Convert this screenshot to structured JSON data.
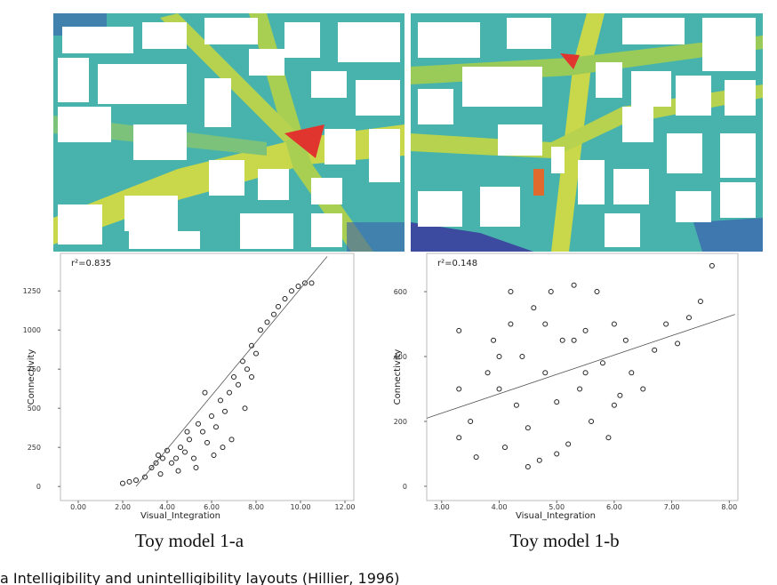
{
  "chart_data": [
    {
      "type": "scatter",
      "title": "Toy model 1-a",
      "annotation": "r²=0.835",
      "x_label": "Visual_Integration",
      "y_label": "Connectivity",
      "xlim": [
        -0.8,
        12.4
      ],
      "ylim": [
        -90,
        1490
      ],
      "xticks": [
        {
          "value": 0,
          "label": "0.00"
        },
        {
          "value": 2,
          "label": "2.00"
        },
        {
          "value": 4,
          "label": "4.00"
        },
        {
          "value": 6,
          "label": "6.00"
        },
        {
          "value": 8,
          "label": "8.00"
        },
        {
          "value": 10,
          "label": "10.00"
        },
        {
          "value": 12,
          "label": "12.00"
        }
      ],
      "yticks": [
        0,
        250,
        500,
        750,
        1000,
        1250
      ],
      "color": "#222222",
      "x": [
        2.0,
        2.3,
        2.6,
        3.0,
        3.3,
        3.5,
        3.6,
        3.8,
        4.0,
        4.2,
        4.4,
        4.6,
        4.8,
        5.0,
        5.2,
        5.4,
        5.6,
        5.8,
        6.0,
        6.2,
        6.4,
        6.6,
        6.8,
        7.0,
        7.2,
        7.4,
        7.6,
        7.8,
        8.0,
        8.2,
        8.5,
        8.8,
        9.0,
        9.3,
        9.6,
        9.9,
        10.2,
        10.5,
        3.7,
        4.5,
        5.3,
        6.1,
        6.9,
        7.5,
        5.7,
        4.9,
        7.8,
        6.5
      ],
      "values": [
        20,
        30,
        40,
        60,
        120,
        150,
        200,
        180,
        230,
        150,
        180,
        250,
        220,
        300,
        180,
        400,
        350,
        280,
        450,
        380,
        550,
        480,
        600,
        700,
        650,
        800,
        750,
        900,
        850,
        1000,
        1050,
        1100,
        1150,
        1200,
        1250,
        1280,
        1300,
        1300,
        80,
        100,
        120,
        200,
        300,
        500,
        600,
        350,
        700,
        250
      ],
      "trend_line": {
        "x": [
          2.6,
          11.2
        ],
        "y": [
          0,
          1470
        ]
      }
    },
    {
      "type": "scatter",
      "title": "Toy model 1-b",
      "annotation": "r²=0.148",
      "x_label": "Visual_Integration",
      "y_label": "Connectivity",
      "xlim": [
        2.74,
        8.15
      ],
      "ylim": [
        -44,
        718
      ],
      "xticks": [
        {
          "value": 3,
          "label": "3.00"
        },
        {
          "value": 4,
          "label": "4.00"
        },
        {
          "value": 5,
          "label": "5.00"
        },
        {
          "value": 6,
          "label": "6.00"
        },
        {
          "value": 7,
          "label": "7.00"
        },
        {
          "value": 8,
          "label": "8.00"
        }
      ],
      "yticks": [
        0,
        200,
        400,
        600
      ],
      "color": "#222222",
      "x": [
        3.3,
        3.3,
        3.3,
        3.5,
        3.6,
        3.8,
        3.9,
        4.0,
        4.1,
        4.2,
        4.3,
        4.4,
        4.5,
        4.6,
        4.7,
        4.8,
        4.9,
        5.0,
        5.1,
        5.2,
        5.3,
        5.4,
        5.5,
        5.6,
        5.7,
        5.8,
        5.9,
        6.0,
        6.1,
        6.2,
        6.3,
        6.5,
        6.7,
        6.9,
        7.1,
        7.3,
        7.5,
        7.7,
        4.0,
        4.5,
        5.0,
        5.5,
        6.0,
        4.2,
        4.8,
        5.3
      ],
      "values": [
        480,
        300,
        150,
        200,
        90,
        350,
        450,
        300,
        120,
        500,
        250,
        400,
        180,
        550,
        80,
        350,
        600,
        260,
        450,
        130,
        620,
        300,
        480,
        200,
        600,
        380,
        150,
        500,
        280,
        450,
        350,
        300,
        420,
        500,
        440,
        520,
        570,
        680,
        400,
        60,
        100,
        350,
        250,
        600,
        500,
        450
      ],
      "trend_line": {
        "x": [
          2.74,
          8.1
        ],
        "y": [
          210,
          530
        ]
      }
    }
  ],
  "caption": "a Intelligibility and unintelligibility layouts (Hillier, 1996)"
}
